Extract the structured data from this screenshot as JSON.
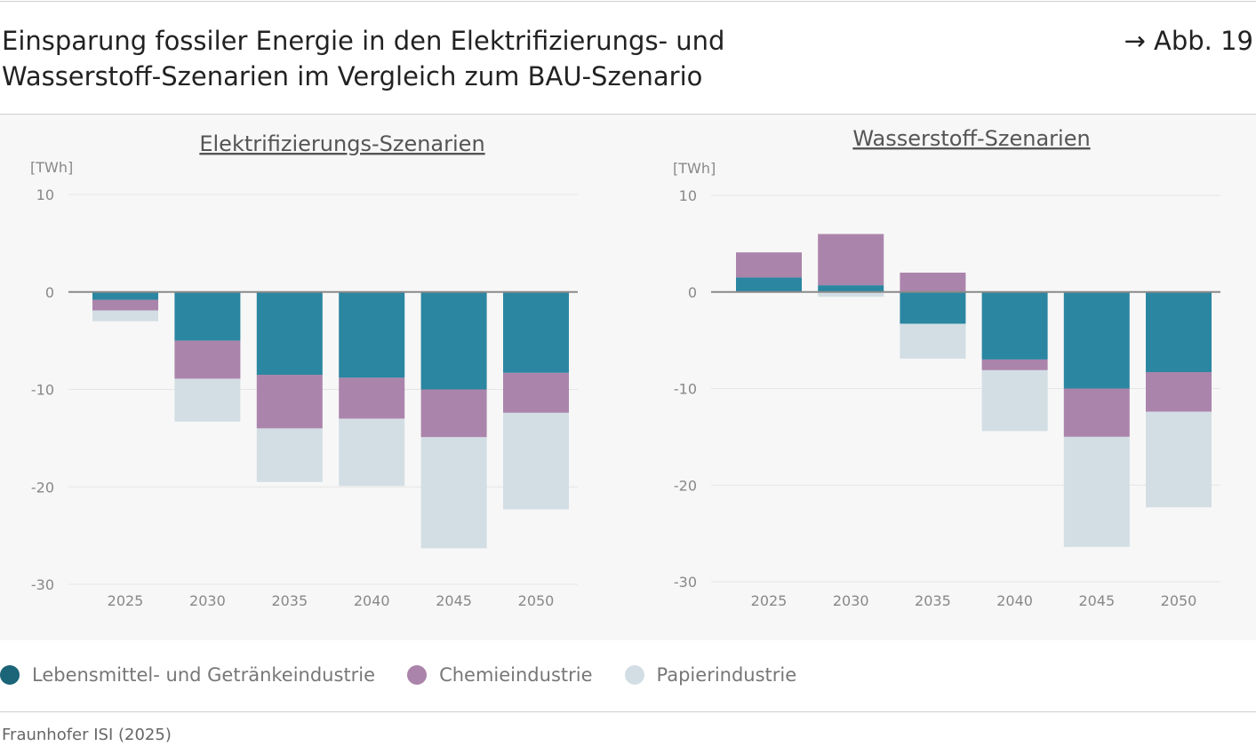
{
  "header": {
    "title_line1": "Einsparung fossiler Energie in den Elektrifizierungs- und",
    "title_line2": "Wasserstoff-Szenarien im Vergleich zum BAU-Szenario",
    "figure_ref": "→ Abb. 19"
  },
  "colors": {
    "food": "#2b86a1",
    "chem": "#ab84ab",
    "paper": "#d3dee4",
    "panel_bg": "#f7f7f7"
  },
  "chart_data": [
    {
      "type": "bar",
      "stacked": true,
      "title": "Elektrifizierungs-Szenarien",
      "ylabel": "[TWh]",
      "ylim": [
        -30,
        10
      ],
      "yticks": [
        10,
        0,
        -10,
        -20,
        -30
      ],
      "grid": true,
      "categories": [
        "2025",
        "2030",
        "2035",
        "2040",
        "2045",
        "2050"
      ],
      "series": [
        {
          "name": "Lebensmittel- und Getränkeindustrie",
          "values": [
            -0.8,
            -5.0,
            -8.5,
            -8.8,
            -10.0,
            -8.3
          ]
        },
        {
          "name": "Chemieindustrie",
          "values": [
            -1.1,
            -3.9,
            -5.5,
            -4.2,
            -4.9,
            -4.1
          ]
        },
        {
          "name": "Papierindustrie",
          "values": [
            -1.1,
            -4.4,
            -5.5,
            -6.9,
            -11.4,
            -9.9
          ]
        }
      ]
    },
    {
      "type": "bar",
      "stacked": true,
      "title": "Wasserstoff-Szenarien",
      "ylabel": "[TWh]",
      "ylim": [
        -30,
        10
      ],
      "yticks": [
        10,
        0,
        -10,
        -20,
        -30
      ],
      "grid": true,
      "categories": [
        "2025",
        "2030",
        "2035",
        "2040",
        "2045",
        "2050"
      ],
      "series": [
        {
          "name": "Lebensmittel- und Getränkeindustrie",
          "values": [
            1.5,
            0.7,
            -3.3,
            -7.0,
            -10.0,
            -8.3
          ]
        },
        {
          "name": "Chemieindustrie",
          "values": [
            2.6,
            5.3,
            2.0,
            -1.1,
            -5.0,
            -4.1
          ]
        },
        {
          "name": "Papierindustrie",
          "values": [
            0,
            -0.5,
            -3.6,
            -6.3,
            -11.4,
            -9.9
          ]
        }
      ]
    }
  ],
  "legend": [
    {
      "label": "Lebensmittel- und Getränkeindustrie",
      "color": "#1c6478"
    },
    {
      "label": "Chemieindustrie",
      "color": "#ab84ab"
    },
    {
      "label": "Papierindustrie",
      "color": "#d3dee4"
    }
  ],
  "source": "Fraunhofer ISI (2025)"
}
